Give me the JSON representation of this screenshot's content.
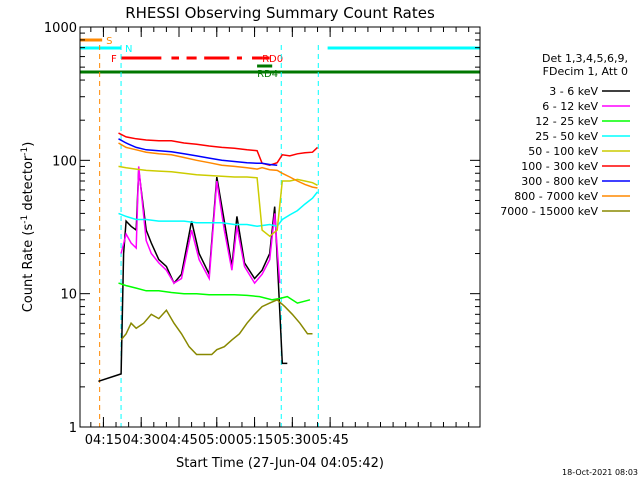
{
  "chart_data": {
    "type": "line",
    "title": "RHESSI Observing Summary Count Rates",
    "xlabel": "Start Time (27-Jun-04 04:05:42)",
    "ylabel_main": "Count Rate (s",
    "ylabel_sup1": "-1",
    "ylabel_mid": " detector",
    "ylabel_sup2": "-1",
    "ylabel_end": ")",
    "yscale": "log",
    "ylim": [
      1,
      1000
    ],
    "xlim_min": [
      245.7,
      404.5
    ],
    "x_ticks": [
      {
        "min": 255,
        "label": "04:15"
      },
      {
        "min": 270,
        "label": "04:30"
      },
      {
        "min": 285,
        "label": "04:45"
      },
      {
        "min": 300,
        "label": "05:00"
      },
      {
        "min": 315,
        "label": "05:15"
      },
      {
        "min": 330,
        "label": "05:30"
      },
      {
        "min": 345,
        "label": "05:45"
      }
    ],
    "y_ticks": [
      {
        "value": 1,
        "label": "1"
      },
      {
        "value": 10,
        "label": "10"
      },
      {
        "value": 100,
        "label": "100"
      },
      {
        "value": 1000,
        "label": "1000"
      }
    ],
    "legend_header": [
      "Det 1,3,4,5,6,9,",
      "FDecim 1, Att 0"
    ],
    "series": [
      {
        "name": "3 - 6 keV",
        "color": "#000000",
        "x": [
          253,
          262,
          263,
          264,
          266,
          268,
          269,
          272,
          274,
          277,
          280,
          283,
          286,
          290,
          293,
          297,
          300,
          303,
          306,
          308,
          311,
          315,
          318,
          321,
          323,
          326,
          328
        ],
        "y": [
          2.2,
          2.5,
          20,
          35,
          32,
          30,
          85,
          30,
          24,
          18,
          16,
          12,
          14,
          35,
          20,
          14,
          75,
          35,
          16,
          38,
          17,
          13,
          15,
          20,
          45,
          3,
          3
        ]
      },
      {
        "name": "6 - 12 keV",
        "color": "#ff00ff",
        "x": [
          262,
          264,
          266,
          268,
          269,
          272,
          274,
          277,
          280,
          283,
          286,
          290,
          293,
          297,
          300,
          303,
          306,
          308,
          311,
          315,
          318,
          321,
          323,
          325
        ],
        "y": [
          20,
          28,
          24,
          22,
          90,
          25,
          20,
          17,
          15,
          12,
          13,
          30,
          18,
          13,
          70,
          30,
          15,
          32,
          16,
          12,
          14,
          18,
          40,
          12
        ]
      },
      {
        "name": "12 - 25 keV",
        "color": "#00ff00",
        "x": [
          261,
          264,
          268,
          272,
          277,
          282,
          287,
          292,
          297,
          302,
          307,
          312,
          317,
          322,
          325,
          328,
          332,
          337
        ],
        "y": [
          12,
          11.5,
          11,
          10.5,
          10.5,
          10.2,
          10,
          10,
          9.8,
          9.8,
          9.8,
          9.7,
          9.5,
          9,
          9.2,
          9.5,
          8.5,
          9
        ]
      },
      {
        "name": "25 - 50 keV",
        "color": "#00ffff",
        "x": [
          261,
          264,
          268,
          272,
          277,
          282,
          287,
          292,
          297,
          302,
          307,
          312,
          316,
          321,
          324,
          326,
          329,
          332,
          335,
          338,
          340
        ],
        "y": [
          40,
          38,
          36,
          36,
          35,
          35,
          35,
          34,
          34,
          34,
          33,
          33,
          32,
          33,
          32,
          36,
          39,
          42,
          47,
          52,
          58
        ]
      },
      {
        "name": "50 - 100 keV",
        "color": "#cccc00",
        "x": [
          261,
          264,
          268,
          272,
          277,
          282,
          287,
          292,
          297,
          302,
          307,
          312,
          316,
          318,
          321,
          324,
          326,
          329,
          332,
          335,
          338,
          340
        ],
        "y": [
          90,
          88,
          86,
          84,
          83,
          82,
          80,
          78,
          77,
          76,
          75,
          75,
          74,
          30,
          27,
          30,
          70,
          70,
          72,
          70,
          68,
          65
        ]
      },
      {
        "name": "100 - 300 keV",
        "color": "#ff0000",
        "x": [
          261,
          264,
          268,
          272,
          277,
          282,
          287,
          292,
          297,
          302,
          307,
          312,
          316,
          318,
          321,
          324,
          326,
          329,
          332,
          335,
          338,
          340
        ],
        "y": [
          160,
          150,
          145,
          142,
          140,
          140,
          135,
          132,
          128,
          125,
          123,
          120,
          118,
          95,
          92,
          96,
          110,
          108,
          112,
          114,
          115,
          125
        ]
      },
      {
        "name": "300 - 800 keV",
        "color": "#0000ff",
        "x": [
          261,
          264,
          268,
          272,
          277,
          282,
          287,
          292,
          297,
          302,
          307,
          312,
          316,
          318,
          321,
          324
        ],
        "y": [
          145,
          135,
          125,
          120,
          118,
          116,
          112,
          108,
          104,
          100,
          98,
          96,
          95,
          95,
          93,
          92
        ]
      },
      {
        "name": "800 - 7000 keV",
        "color": "#ff8800",
        "x": [
          261,
          264,
          268,
          272,
          277,
          282,
          287,
          292,
          297,
          302,
          307,
          312,
          316,
          318,
          321,
          324,
          326,
          329,
          332,
          335,
          338,
          340
        ],
        "y": [
          135,
          125,
          120,
          115,
          112,
          110,
          105,
          100,
          96,
          92,
          90,
          88,
          86,
          88,
          85,
          84,
          80,
          75,
          70,
          66,
          63,
          62
        ]
      },
      {
        "name": "7000 - 15000 keV",
        "color": "#888800",
        "x": [
          262,
          264,
          266,
          268,
          271,
          274,
          277,
          280,
          283,
          286,
          289,
          292,
          295,
          298,
          300,
          303,
          306,
          309,
          312,
          315,
          318,
          321,
          324,
          327,
          330,
          333,
          336,
          338
        ],
        "y": [
          4.5,
          5,
          6,
          5.5,
          6,
          7,
          6.5,
          7.5,
          6,
          5,
          4,
          3.5,
          3.5,
          3.5,
          3.8,
          4,
          4.5,
          5,
          6,
          7,
          8,
          8.5,
          9,
          8,
          7,
          6,
          5,
          5
        ]
      }
    ],
    "flags": [
      {
        "label": "S",
        "color": "#ff8800",
        "segments": [
          [
            245.7,
            254.5
          ]
        ],
        "level": 0
      },
      {
        "label": "N",
        "color": "#00ffff",
        "segments": [
          [
            245.7,
            262
          ],
          [
            344,
            404.5
          ]
        ],
        "level": 1
      },
      {
        "label": "F",
        "color": "#ff0000",
        "segments": [
          [
            262,
            278
          ],
          [
            282,
            285
          ],
          [
            288,
            292
          ],
          [
            295,
            305
          ],
          [
            308,
            310
          ],
          [
            314,
            318
          ]
        ],
        "level": 2
      },
      {
        "label": "RD0",
        "color": "#ff0000",
        "segments": [
          [
            318,
            321
          ]
        ],
        "level": 2
      },
      {
        "label": "RD4",
        "color": "#007700",
        "segments": [
          [
            316,
            322
          ]
        ],
        "level": 3
      },
      {
        "label": "",
        "color": "#007700",
        "segments": [
          [
            245.7,
            404.5
          ]
        ],
        "level": 4
      }
    ],
    "vlines": [
      {
        "min": 253.5,
        "color": "#ff8800"
      },
      {
        "min": 262,
        "color": "#00ffff"
      },
      {
        "min": 325.6,
        "color": "#00ffff"
      },
      {
        "min": 340.3,
        "color": "#00ffff"
      }
    ],
    "footer_date": "18-Oct-2021 08:03"
  }
}
